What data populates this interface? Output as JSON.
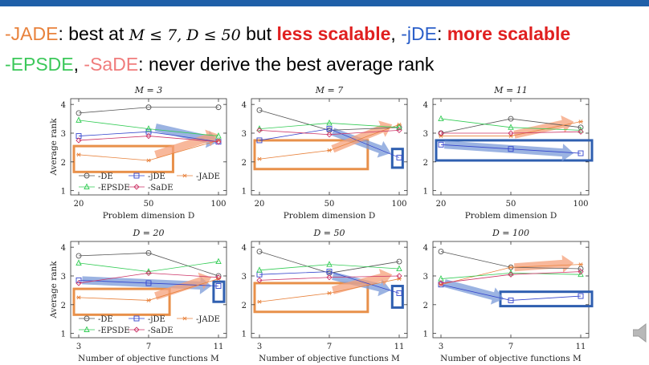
{
  "header": {
    "line1": [
      {
        "text": "-JADE",
        "color": "#e8823c",
        "bold": false
      },
      {
        "text": ": best at ",
        "color": "#000000",
        "bold": false
      },
      {
        "text": "M ≤ 7, D ≤ 50",
        "color": "#000000",
        "bold": false,
        "math": true
      },
      {
        "text": " but ",
        "color": "#000000",
        "bold": false
      },
      {
        "text": "less scalable",
        "color": "#e02020",
        "bold": true
      },
      {
        "text": ", ",
        "color": "#000000",
        "bold": false
      },
      {
        "text": "-jDE",
        "color": "#2b5fc9",
        "bold": false
      },
      {
        "text": ": ",
        "color": "#000000",
        "bold": false
      },
      {
        "text": "more scalable",
        "color": "#e02020",
        "bold": true
      }
    ],
    "line2": [
      {
        "text": "-EPSDE",
        "color": "#3cc85a",
        "bold": false
      },
      {
        "text": ", ",
        "color": "#000000",
        "bold": false
      },
      {
        "text": "-SaDE",
        "color": "#f07c7c",
        "bold": false
      },
      {
        "text": ": never derive the best average rank",
        "color": "#000000",
        "bold": false
      }
    ]
  },
  "speaker_icon": "speaker-icon",
  "colors": {
    "DE": "#555555",
    "jDE": "#3344cc",
    "JADE": "#e8823c",
    "EPSDE": "#33cc55",
    "SaDE": "#cc3366",
    "highlight_orange": "#e8904a",
    "highlight_blue": "#2f5fb0",
    "arrow_orange": "#f5a07a",
    "arrow_blue": "#7a9ad8"
  },
  "chart_data": [
    {
      "type": "line",
      "title": "M = 3",
      "xlabel": "Problem dimension D",
      "ylabel": "Average rank",
      "x": [
        20,
        50,
        100
      ],
      "ylim": [
        0.85,
        4.2
      ],
      "yticks": [
        1,
        2,
        3,
        4
      ],
      "legend": "inside-bottom",
      "series": [
        {
          "name": "-DE",
          "values": [
            3.7,
            3.9,
            3.9
          ]
        },
        {
          "name": "-jDE",
          "values": [
            2.9,
            3.05,
            2.7
          ]
        },
        {
          "name": "-JADE",
          "values": [
            2.25,
            2.05,
            2.75
          ]
        },
        {
          "name": "-EPSDE",
          "values": [
            3.45,
            3.15,
            2.9
          ]
        },
        {
          "name": "-SaDE",
          "values": [
            2.75,
            2.9,
            2.7
          ]
        }
      ]
    },
    {
      "type": "line",
      "title": "M = 7",
      "xlabel": "Problem dimension D",
      "ylabel": "",
      "x": [
        20,
        50,
        100
      ],
      "ylim": [
        0.85,
        4.2
      ],
      "yticks": [
        1,
        2,
        3,
        4
      ],
      "legend": "none",
      "series": [
        {
          "name": "-DE",
          "values": [
            3.8,
            3.1,
            3.2
          ]
        },
        {
          "name": "-jDE",
          "values": [
            2.75,
            3.15,
            2.15
          ]
        },
        {
          "name": "-JADE",
          "values": [
            2.1,
            2.4,
            3.3
          ]
        },
        {
          "name": "-EPSDE",
          "values": [
            3.15,
            3.35,
            3.2
          ]
        },
        {
          "name": "-SaDE",
          "values": [
            3.1,
            2.95,
            3.1
          ]
        }
      ]
    },
    {
      "type": "line",
      "title": "M = 11",
      "xlabel": "Problem dimension D",
      "ylabel": "",
      "x": [
        20,
        50,
        100
      ],
      "ylim": [
        0.85,
        4.2
      ],
      "yticks": [
        1,
        2,
        3,
        4
      ],
      "legend": "none",
      "series": [
        {
          "name": "-DE",
          "values": [
            3.0,
            3.5,
            3.2
          ]
        },
        {
          "name": "-jDE",
          "values": [
            2.6,
            2.45,
            2.3
          ]
        },
        {
          "name": "-JADE",
          "values": [
            2.9,
            2.9,
            3.4
          ]
        },
        {
          "name": "-EPSDE",
          "values": [
            3.5,
            3.2,
            3.1
          ]
        },
        {
          "name": "-SaDE",
          "values": [
            3.0,
            3.0,
            3.05
          ]
        }
      ]
    },
    {
      "type": "line",
      "title": "D = 20",
      "xlabel": "Number of objective functions M",
      "ylabel": "Average rank",
      "x": [
        3,
        7,
        11
      ],
      "ylim": [
        0.85,
        4.2
      ],
      "yticks": [
        1,
        2,
        3,
        4
      ],
      "legend": "inside-bottom",
      "series": [
        {
          "name": "-DE",
          "values": [
            3.7,
            3.8,
            3.0
          ]
        },
        {
          "name": "-jDE",
          "values": [
            2.85,
            2.75,
            2.65
          ]
        },
        {
          "name": "-JADE",
          "values": [
            2.25,
            2.15,
            2.9
          ]
        },
        {
          "name": "-EPSDE",
          "values": [
            3.45,
            3.15,
            3.5
          ]
        },
        {
          "name": "-SaDE",
          "values": [
            2.75,
            3.1,
            2.95
          ]
        }
      ]
    },
    {
      "type": "line",
      "title": "D = 50",
      "xlabel": "Number of objective functions M",
      "ylabel": "",
      "x": [
        3,
        7,
        11
      ],
      "ylim": [
        0.85,
        4.2
      ],
      "yticks": [
        1,
        2,
        3,
        4
      ],
      "legend": "none",
      "series": [
        {
          "name": "-DE",
          "values": [
            3.85,
            3.1,
            3.5
          ]
        },
        {
          "name": "-jDE",
          "values": [
            3.05,
            3.15,
            2.4
          ]
        },
        {
          "name": "-JADE",
          "values": [
            2.1,
            2.4,
            2.9
          ]
        },
        {
          "name": "-EPSDE",
          "values": [
            3.2,
            3.4,
            3.25
          ]
        },
        {
          "name": "-SaDE",
          "values": [
            2.85,
            2.95,
            3.0
          ]
        }
      ]
    },
    {
      "type": "line",
      "title": "D = 100",
      "xlabel": "Number of objective functions M",
      "ylabel": "",
      "x": [
        3,
        7,
        11
      ],
      "ylim": [
        0.85,
        4.2
      ],
      "yticks": [
        1,
        2,
        3,
        4
      ],
      "legend": "none",
      "series": [
        {
          "name": "-DE",
          "values": [
            3.85,
            3.3,
            3.25
          ]
        },
        {
          "name": "-jDE",
          "values": [
            2.7,
            2.15,
            2.3
          ]
        },
        {
          "name": "-JADE",
          "values": [
            2.7,
            3.3,
            3.4
          ]
        },
        {
          "name": "-EPSDE",
          "values": [
            2.9,
            3.1,
            3.05
          ]
        },
        {
          "name": "-SaDE",
          "values": [
            2.75,
            3.05,
            3.15
          ]
        }
      ]
    }
  ]
}
